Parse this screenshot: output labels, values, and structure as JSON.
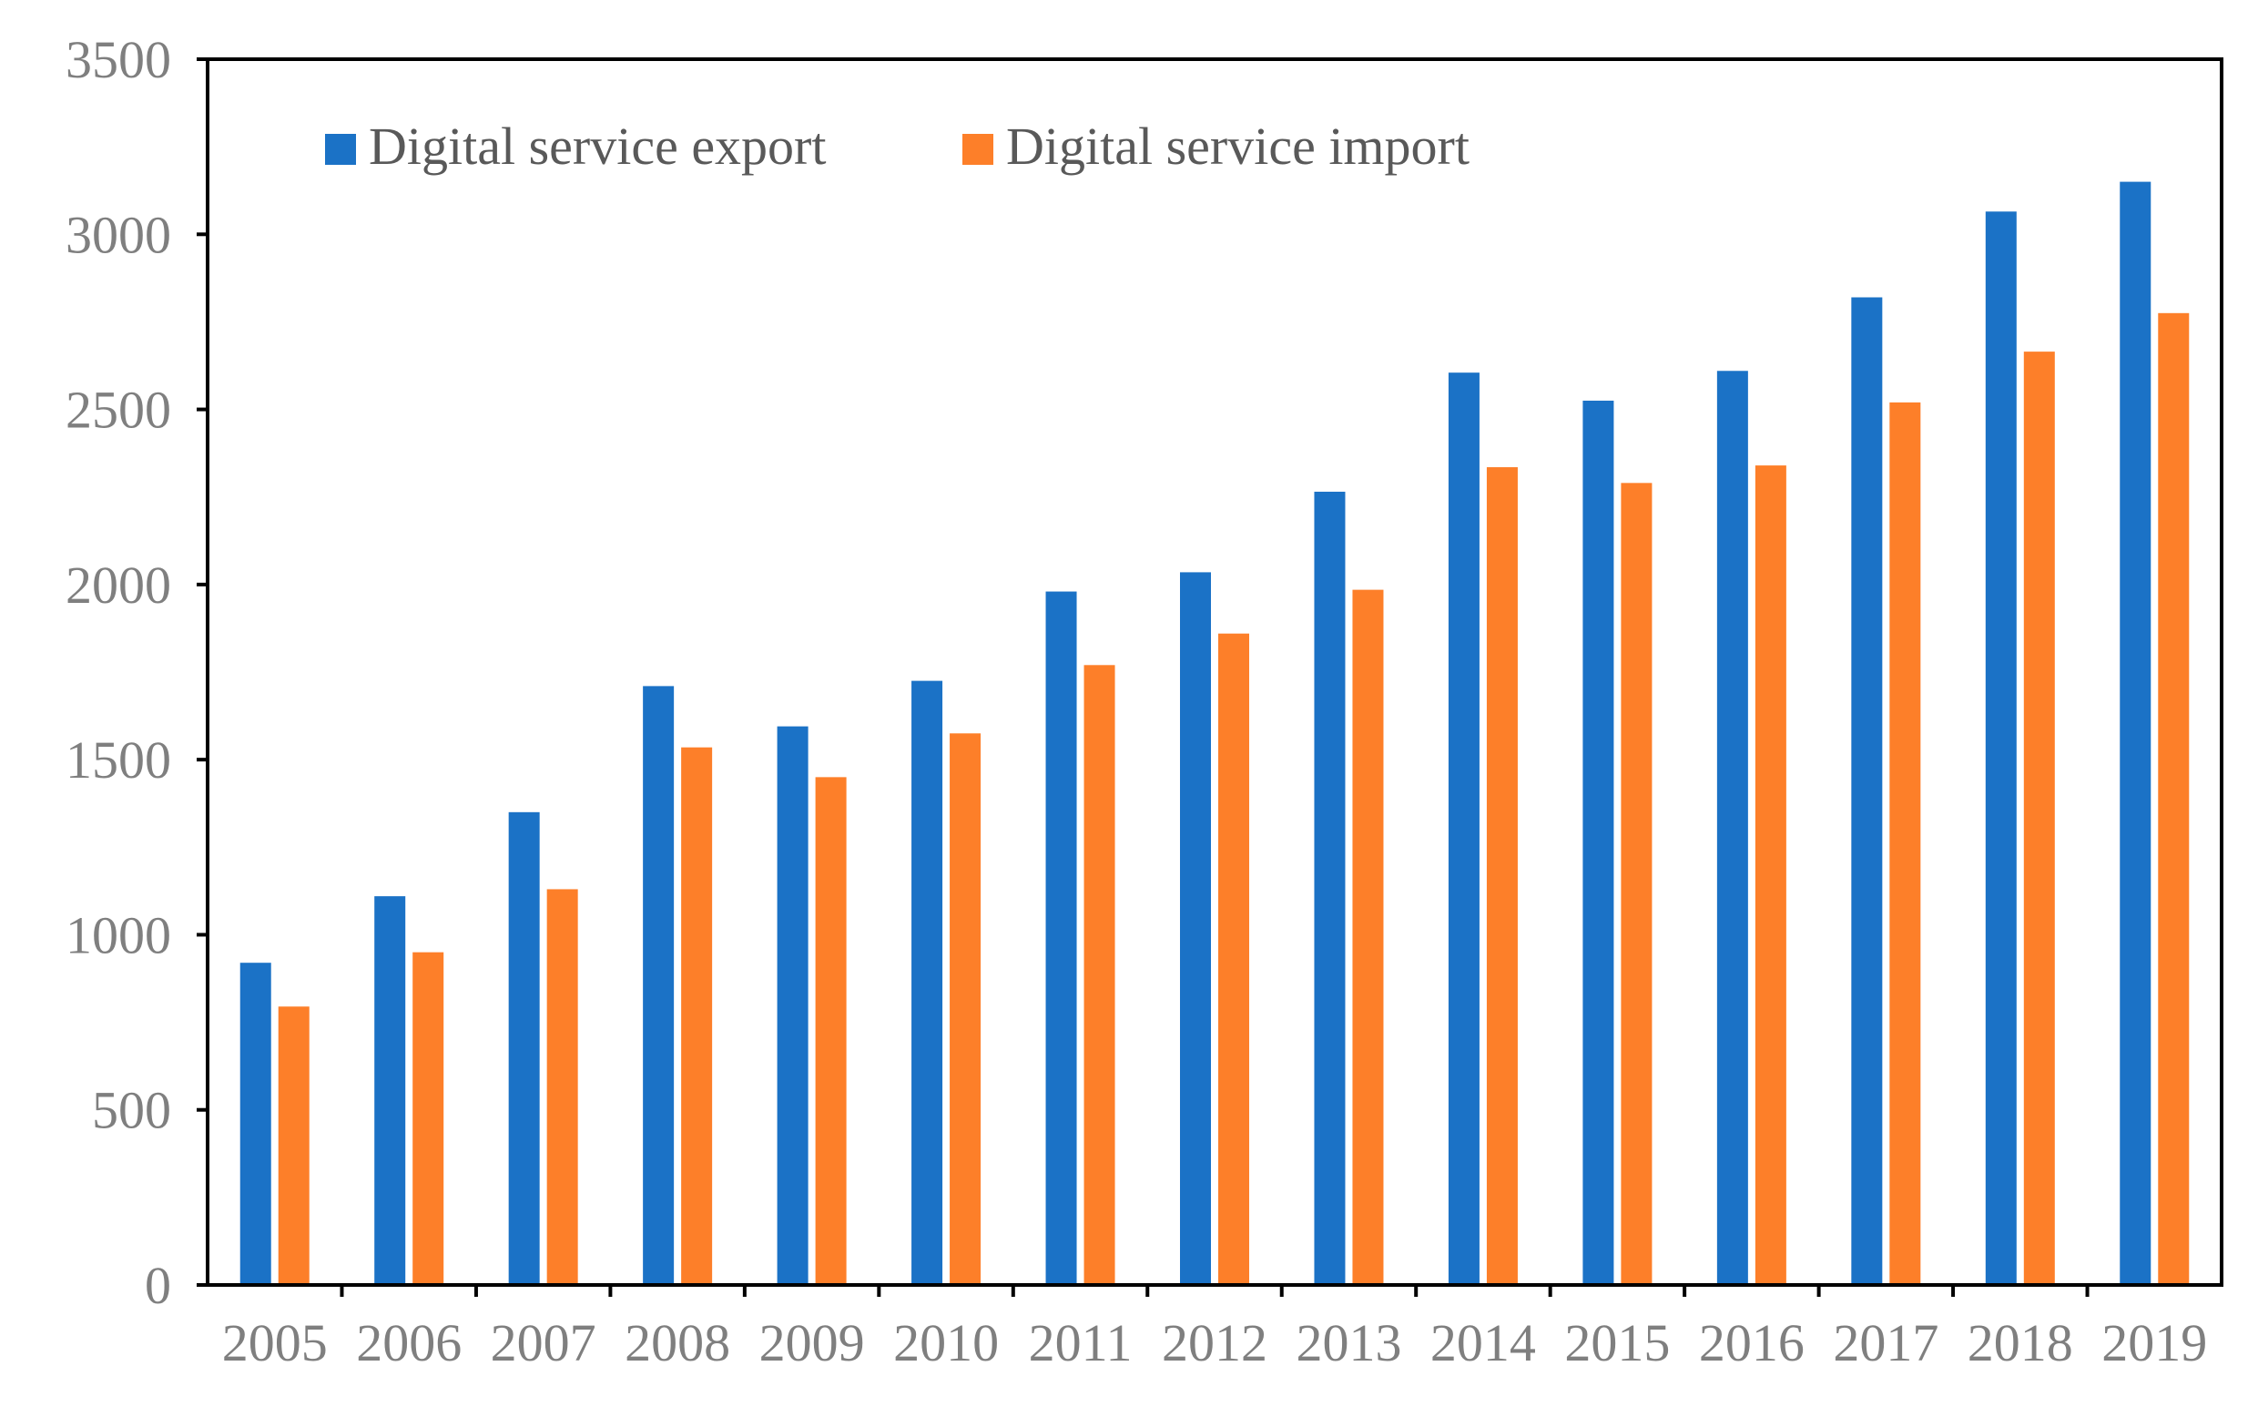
{
  "chart_data": {
    "type": "bar",
    "title": "",
    "xlabel": "",
    "ylabel": "",
    "ylim": [
      0,
      3500
    ],
    "yticks": [
      0,
      500,
      1000,
      1500,
      2000,
      2500,
      3000,
      3500
    ],
    "grid": false,
    "legend_position": "top-left",
    "categories": [
      "2005",
      "2006",
      "2007",
      "2008",
      "2009",
      "2010",
      "2011",
      "2012",
      "2013",
      "2014",
      "2015",
      "2016",
      "2017",
      "2018",
      "2019"
    ],
    "series": [
      {
        "name": "Digital service export",
        "color": "#1b72c6",
        "values": [
          920,
          1110,
          1350,
          1710,
          1595,
          1725,
          1980,
          2035,
          2265,
          2605,
          2525,
          2610,
          2820,
          3065,
          3150
        ]
      },
      {
        "name": "Digital service import",
        "color": "#fd7f29",
        "values": [
          795,
          950,
          1130,
          1535,
          1450,
          1575,
          1770,
          1860,
          1985,
          2335,
          2290,
          2340,
          2520,
          2665,
          2775
        ]
      }
    ]
  }
}
